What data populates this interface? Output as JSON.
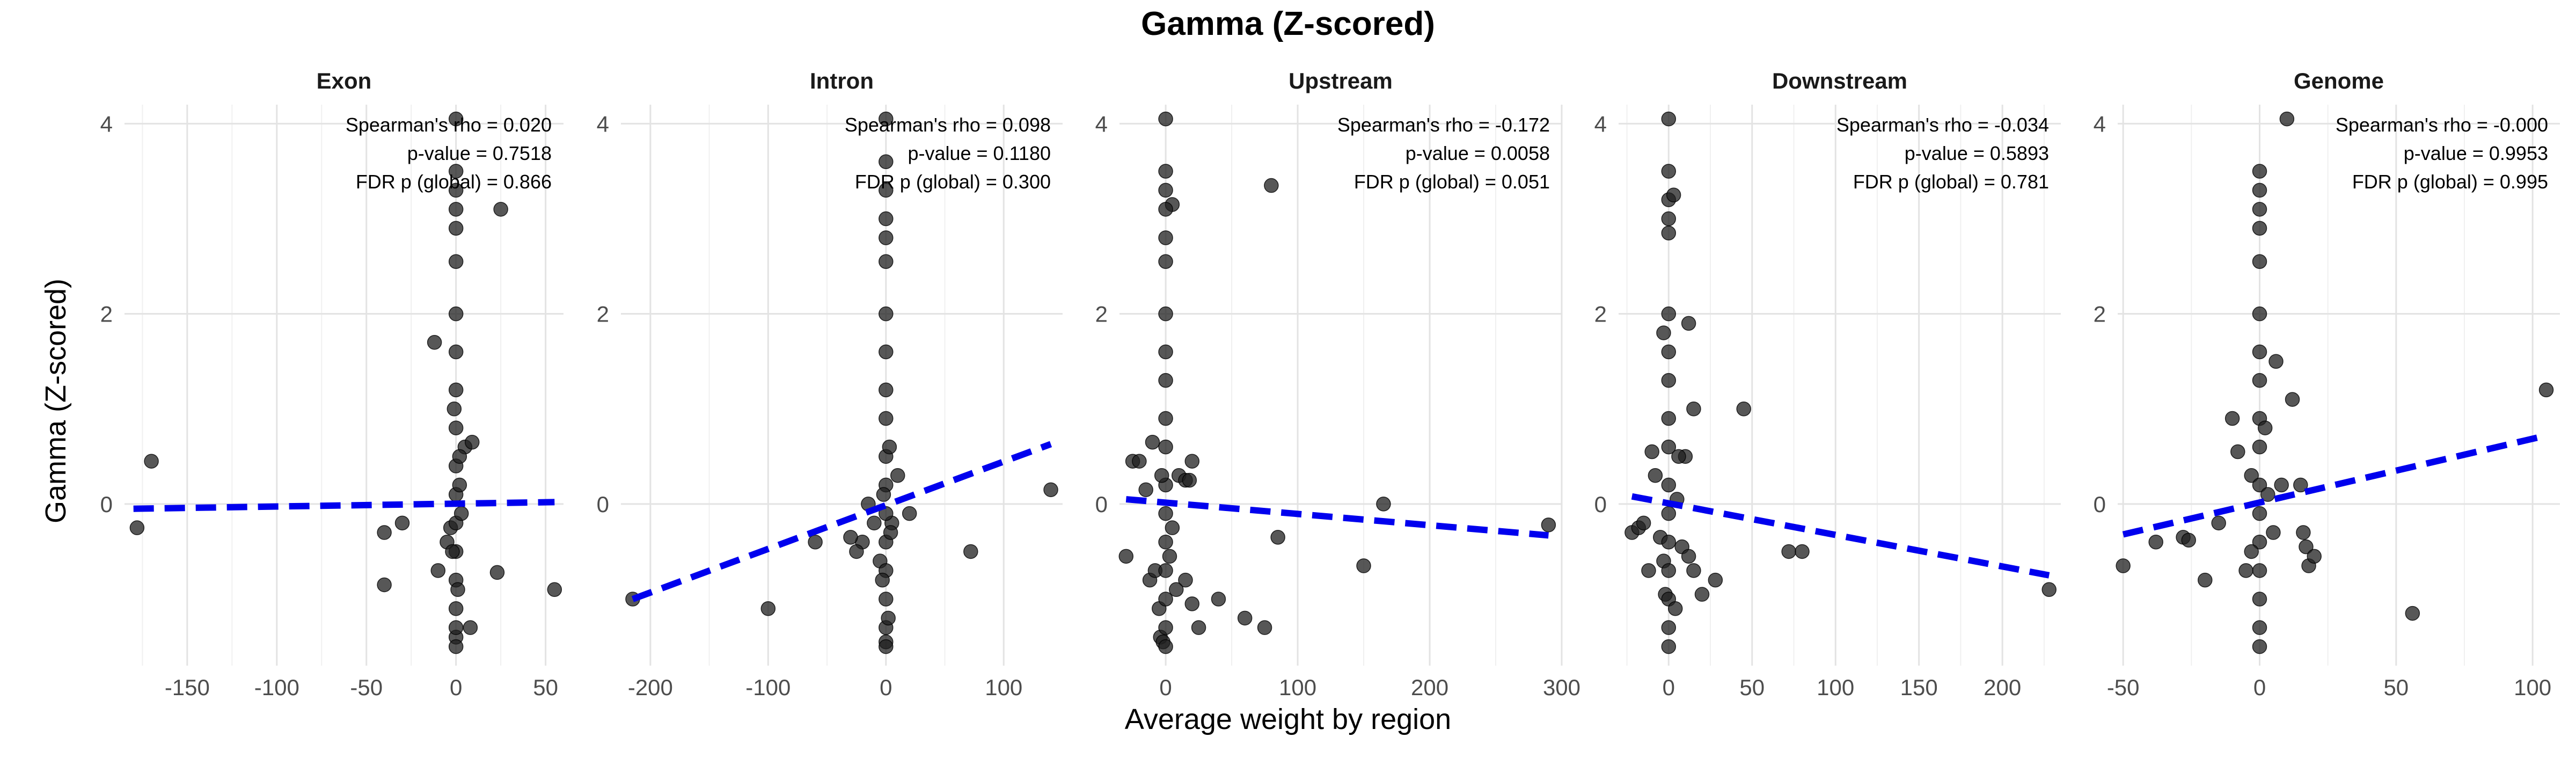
{
  "chart_data": {
    "type": "scatter",
    "title": "Gamma (Z-scored)",
    "xlabel": "Average weight by region",
    "ylabel": "Gamma (Z-scored)",
    "ylim": [
      -1.7,
      4.2
    ],
    "yticks": [
      0,
      2,
      4
    ],
    "grid": true,
    "facets": [
      {
        "name": "Exon",
        "xlim": [
          -185,
          60
        ],
        "xticks": [
          -150,
          -100,
          -50,
          0,
          50
        ],
        "stats": [
          "Spearman's rho = 0.020",
          "p-value = 0.7518",
          "FDR p (global) = 0.866"
        ],
        "trend": {
          "x": [
            -180,
            55
          ],
          "y": [
            -0.05,
            0.02
          ]
        },
        "points": [
          [
            -170,
            0.45
          ],
          [
            -178,
            -0.25
          ],
          [
            -12,
            1.7
          ],
          [
            -40,
            -0.3
          ],
          [
            -30,
            -0.2
          ],
          [
            -40,
            -0.85
          ],
          [
            -10,
            -0.7
          ],
          [
            -5,
            -0.4
          ],
          [
            -3,
            -0.25
          ],
          [
            25,
            3.1
          ],
          [
            5,
            0.6
          ],
          [
            9,
            0.65
          ],
          [
            8,
            -1.3
          ],
          [
            23,
            -0.72
          ],
          [
            55,
            -0.9
          ],
          [
            0,
            4.05
          ],
          [
            0,
            3.5
          ],
          [
            0,
            3.3
          ],
          [
            0,
            3.1
          ],
          [
            0,
            2.9
          ],
          [
            0,
            2.55
          ],
          [
            0,
            2.0
          ],
          [
            0,
            1.6
          ],
          [
            0,
            1.2
          ],
          [
            0,
            0.8
          ],
          [
            0,
            0.4
          ],
          [
            0,
            0.1
          ],
          [
            0,
            -0.2
          ],
          [
            0,
            -0.5
          ],
          [
            0,
            -0.8
          ],
          [
            0,
            -1.1
          ],
          [
            0,
            -1.4
          ],
          [
            0,
            -1.5
          ],
          [
            0,
            -1.3
          ],
          [
            2,
            0.2
          ],
          [
            3,
            -0.1
          ],
          [
            -2,
            -0.5
          ],
          [
            1,
            -0.9
          ],
          [
            -1,
            1.0
          ],
          [
            2,
            0.5
          ]
        ]
      },
      {
        "name": "Intron",
        "xlim": [
          -225,
          150
        ],
        "xticks": [
          -200,
          -100,
          0,
          100
        ],
        "stats": [
          "Spearman's rho = 0.098",
          "p-value = 0.1180",
          "FDR p (global) = 0.300"
        ],
        "trend": {
          "x": [
            -215,
            140
          ],
          "y": [
            -1.0,
            0.63
          ]
        },
        "points": [
          [
            -215,
            -1.0
          ],
          [
            -100,
            -1.1
          ],
          [
            140,
            0.15
          ],
          [
            72,
            -0.5
          ],
          [
            20,
            -0.1
          ],
          [
            -20,
            -0.4
          ],
          [
            -10,
            -0.2
          ],
          [
            -15,
            0.0
          ],
          [
            -60,
            -0.4
          ],
          [
            -30,
            -0.35
          ],
          [
            -25,
            -0.5
          ],
          [
            -5,
            -0.6
          ],
          [
            5,
            -0.2
          ],
          [
            10,
            0.3
          ],
          [
            0,
            4.05
          ],
          [
            0,
            3.6
          ],
          [
            0,
            3.3
          ],
          [
            0,
            3.0
          ],
          [
            0,
            2.8
          ],
          [
            0,
            2.55
          ],
          [
            0,
            2.0
          ],
          [
            0,
            1.6
          ],
          [
            0,
            1.2
          ],
          [
            0,
            0.9
          ],
          [
            0,
            0.5
          ],
          [
            0,
            0.2
          ],
          [
            0,
            -0.1
          ],
          [
            0,
            -0.4
          ],
          [
            0,
            -0.7
          ],
          [
            0,
            -1.0
          ],
          [
            0,
            -1.3
          ],
          [
            0,
            -1.45
          ],
          [
            0,
            -1.5
          ],
          [
            3,
            0.6
          ],
          [
            -3,
            -0.8
          ],
          [
            2,
            -1.2
          ],
          [
            -2,
            0.1
          ],
          [
            4,
            -0.3
          ]
        ]
      },
      {
        "name": "Upstream",
        "xlim": [
          -35,
          300
        ],
        "xticks": [
          0,
          100,
          200,
          300
        ],
        "stats": [
          "Spearman's rho = -0.172",
          "p-value = 0.0058",
          "FDR p (global) = 0.051"
        ],
        "trend": {
          "x": [
            -30,
            290
          ],
          "y": [
            0.05,
            -0.33
          ]
        },
        "points": [
          [
            -30,
            -0.55
          ],
          [
            -25,
            0.45
          ],
          [
            -20,
            0.45
          ],
          [
            -15,
            0.15
          ],
          [
            -10,
            0.65
          ],
          [
            -12,
            -0.8
          ],
          [
            -8,
            -0.7
          ],
          [
            -5,
            -1.1
          ],
          [
            -4,
            -1.4
          ],
          [
            -2,
            -1.45
          ],
          [
            5,
            3.15
          ],
          [
            10,
            0.3
          ],
          [
            15,
            0.25
          ],
          [
            20,
            0.45
          ],
          [
            18,
            0.25
          ],
          [
            15,
            -0.8
          ],
          [
            20,
            -1.05
          ],
          [
            25,
            -1.3
          ],
          [
            40,
            -1.0
          ],
          [
            60,
            -1.2
          ],
          [
            75,
            -1.3
          ],
          [
            80,
            3.35
          ],
          [
            85,
            -0.35
          ],
          [
            150,
            -0.65
          ],
          [
            165,
            0.0
          ],
          [
            290,
            -0.22
          ],
          [
            0,
            4.05
          ],
          [
            0,
            3.5
          ],
          [
            0,
            3.3
          ],
          [
            0,
            3.1
          ],
          [
            0,
            2.8
          ],
          [
            0,
            2.55
          ],
          [
            0,
            2.0
          ],
          [
            0,
            1.6
          ],
          [
            0,
            1.3
          ],
          [
            0,
            0.9
          ],
          [
            0,
            0.6
          ],
          [
            0,
            0.2
          ],
          [
            0,
            -0.1
          ],
          [
            0,
            -0.4
          ],
          [
            0,
            -0.7
          ],
          [
            0,
            -1.0
          ],
          [
            0,
            -1.3
          ],
          [
            0,
            -1.5
          ],
          [
            3,
            -0.55
          ],
          [
            -3,
            0.3
          ],
          [
            5,
            -0.25
          ],
          [
            8,
            -0.9
          ]
        ]
      },
      {
        "name": "Downstream",
        "xlim": [
          -30,
          235
        ],
        "xticks": [
          0,
          50,
          100,
          150,
          200
        ],
        "stats": [
          "Spearman's rho = -0.034",
          "p-value = 0.5893",
          "FDR p (global) = 0.781"
        ],
        "trend": {
          "x": [
            -22,
            228
          ],
          "y": [
            0.08,
            -0.75
          ]
        },
        "points": [
          [
            -22,
            -0.3
          ],
          [
            -18,
            -0.25
          ],
          [
            -15,
            -0.2
          ],
          [
            -12,
            -0.7
          ],
          [
            -10,
            0.55
          ],
          [
            -8,
            0.3
          ],
          [
            -5,
            -0.35
          ],
          [
            -3,
            -0.6
          ],
          [
            -2,
            -0.95
          ],
          [
            5,
            0.05
          ],
          [
            8,
            -0.45
          ],
          [
            10,
            0.5
          ],
          [
            12,
            -0.55
          ],
          [
            15,
            -0.7
          ],
          [
            20,
            -0.95
          ],
          [
            28,
            -0.8
          ],
          [
            12,
            1.9
          ],
          [
            15,
            1.0
          ],
          [
            45,
            1.0
          ],
          [
            72,
            -0.5
          ],
          [
            80,
            -0.5
          ],
          [
            228,
            -0.9
          ],
          [
            0,
            4.05
          ],
          [
            0,
            3.5
          ],
          [
            0,
            3.2
          ],
          [
            0,
            3.0
          ],
          [
            0,
            2.85
          ],
          [
            0,
            2.0
          ],
          [
            0,
            1.6
          ],
          [
            0,
            1.3
          ],
          [
            0,
            0.9
          ],
          [
            0,
            0.6
          ],
          [
            0,
            0.2
          ],
          [
            0,
            -0.1
          ],
          [
            0,
            -0.4
          ],
          [
            0,
            -0.7
          ],
          [
            0,
            -1.0
          ],
          [
            0,
            -1.3
          ],
          [
            0,
            -1.5
          ],
          [
            3,
            3.25
          ],
          [
            -3,
            1.8
          ],
          [
            4,
            -1.1
          ],
          [
            6,
            0.5
          ]
        ]
      },
      {
        "name": "Genome",
        "xlim": [
          -52,
          110
        ],
        "xticks": [
          -50,
          0,
          50,
          100
        ],
        "stats": [
          "Spearman's rho = -0.000",
          "p-value = 0.9953",
          "FDR p (global) = 0.995"
        ],
        "trend": {
          "x": [
            -50,
            105
          ],
          "y": [
            -0.32,
            0.72
          ]
        },
        "points": [
          [
            -50,
            -0.65
          ],
          [
            -38,
            -0.4
          ],
          [
            -28,
            -0.35
          ],
          [
            -26,
            -0.38
          ],
          [
            -20,
            -0.8
          ],
          [
            -15,
            -0.2
          ],
          [
            -10,
            0.9
          ],
          [
            -8,
            0.55
          ],
          [
            -5,
            -0.7
          ],
          [
            -3,
            0.3
          ],
          [
            5,
            -0.3
          ],
          [
            8,
            0.2
          ],
          [
            10,
            4.05
          ],
          [
            12,
            1.1
          ],
          [
            15,
            0.2
          ],
          [
            16,
            -0.3
          ],
          [
            17,
            -0.45
          ],
          [
            18,
            -0.65
          ],
          [
            20,
            -0.55
          ],
          [
            56,
            -1.15
          ],
          [
            105,
            1.2
          ],
          [
            0,
            3.5
          ],
          [
            0,
            3.3
          ],
          [
            0,
            3.1
          ],
          [
            0,
            2.9
          ],
          [
            0,
            2.55
          ],
          [
            0,
            2.0
          ],
          [
            0,
            1.6
          ],
          [
            0,
            1.3
          ],
          [
            0,
            0.9
          ],
          [
            0,
            0.6
          ],
          [
            0,
            0.2
          ],
          [
            0,
            -0.1
          ],
          [
            0,
            -0.4
          ],
          [
            0,
            -0.7
          ],
          [
            0,
            -1.0
          ],
          [
            0,
            -1.3
          ],
          [
            0,
            -1.5
          ],
          [
            3,
            0.1
          ],
          [
            -3,
            -0.5
          ],
          [
            2,
            0.8
          ],
          [
            6,
            1.5
          ]
        ]
      }
    ]
  }
}
